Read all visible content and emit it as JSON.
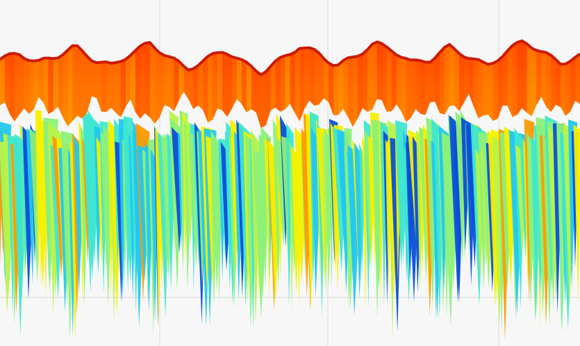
{
  "chart_data": {
    "type": "area",
    "title": "",
    "xlabel": "",
    "ylabel": "",
    "colormap": "jet",
    "grid": true,
    "legend": "none",
    "view": "3d-surface-side",
    "colors": {
      "background": "#f7f7f7",
      "grid": "#d9d9d9",
      "ridge_top": "#cc1a00",
      "band_hot": "#ff5a00",
      "band_warm": "#ff9a00",
      "mid_yellow": "#f4f000",
      "mid_green": "#8cf07a",
      "low_cyan": "#3fe6d0",
      "deep_blue": "#0a4fd8"
    },
    "series": [
      {
        "values": [
          0.86,
          0.88,
          0.85,
          0.87,
          0.9,
          0.86,
          0.84,
          0.88,
          0.91,
          0.87,
          0.83,
          0.86,
          0.89,
          0.85,
          0.82,
          0.86,
          0.9,
          0.88,
          0.84,
          0.87,
          0.91,
          0.89,
          0.85,
          0.86,
          0.9,
          0.87,
          0.84,
          0.88,
          0.92,
          0.88,
          0.85,
          0.87
        ]
      },
      {
        "values": [
          0.72,
          0.68,
          0.73,
          0.7,
          0.66,
          0.74,
          0.69,
          0.72,
          0.67,
          0.71,
          0.75,
          0.68,
          0.7,
          0.73,
          0.66,
          0.72,
          0.69,
          0.74,
          0.7,
          0.67,
          0.73,
          0.71,
          0.68,
          0.72,
          0.7,
          0.74,
          0.67,
          0.71,
          0.69,
          0.73,
          0.7,
          0.72
        ]
      },
      {
        "values": [
          0.34,
          0.12,
          0.41,
          0.22,
          0.05,
          0.38,
          0.18,
          0.3,
          0.09,
          0.27,
          0.4,
          0.15,
          0.33,
          0.2,
          0.02,
          0.36,
          0.24,
          0.1,
          0.39,
          0.19,
          0.29,
          0.07,
          0.35,
          0.21,
          0.13,
          0.37,
          0.26,
          0.08,
          0.31,
          0.17,
          0.04,
          0.28
        ]
      }
    ]
  }
}
